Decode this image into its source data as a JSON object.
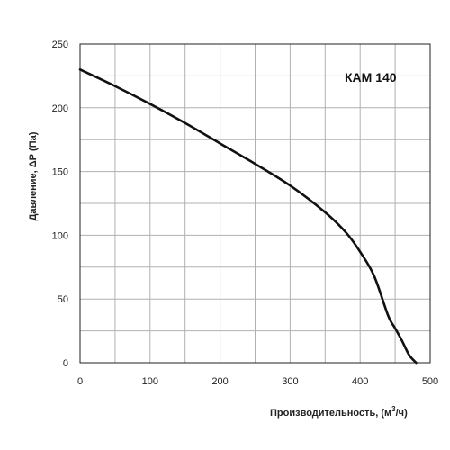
{
  "chart_data": {
    "type": "line",
    "title": "",
    "xlabel": "Производительность, (м",
    "xlabel_sup": "3",
    "xlabel_tail": "/ч)",
    "ylabel": "Давление, ΔР (Па)",
    "xlim": [
      0,
      500
    ],
    "ylim": [
      0,
      250
    ],
    "x_ticks": [
      0,
      100,
      200,
      300,
      400,
      500
    ],
    "y_ticks": [
      0,
      50,
      100,
      150,
      200,
      250
    ],
    "x_grid_step": 50,
    "y_grid_step": 25,
    "grid": true,
    "series": [
      {
        "name": "КАМ 140",
        "x": [
          0,
          50,
          100,
          150,
          200,
          250,
          300,
          350,
          380,
          400,
          420,
          440,
          450,
          460,
          470,
          480
        ],
        "y": [
          230,
          217,
          203,
          188,
          172,
          156,
          139,
          118,
          102,
          87,
          68,
          37,
          27,
          17,
          6,
          0
        ]
      }
    ]
  },
  "colors": {
    "grid": "#b0b0b0",
    "frame": "#222222",
    "line": "#111111"
  }
}
